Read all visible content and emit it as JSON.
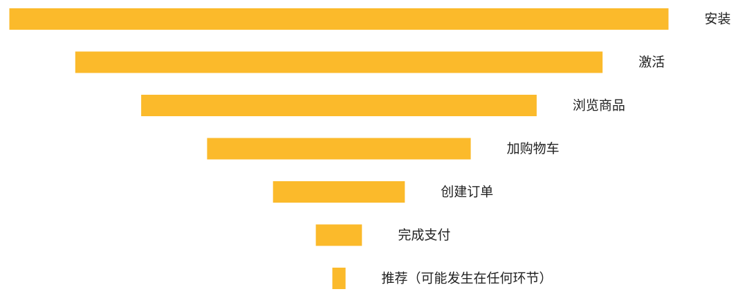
{
  "chart_data": {
    "type": "bar",
    "subtype": "funnel",
    "categories": [
      "安装",
      "激活",
      "浏览商品",
      "加购物车",
      "创建订单",
      "完成支付",
      "推荐（可能发生在任何环节）"
    ],
    "values": [
      100,
      80,
      60,
      40,
      20,
      7,
      2
    ],
    "xlim": [
      0,
      100
    ],
    "bar_color": "#FBBA2B",
    "title": "",
    "xlabel": "",
    "ylabel": "",
    "grid": false,
    "legend": "none",
    "label_position": "right of each bar"
  }
}
